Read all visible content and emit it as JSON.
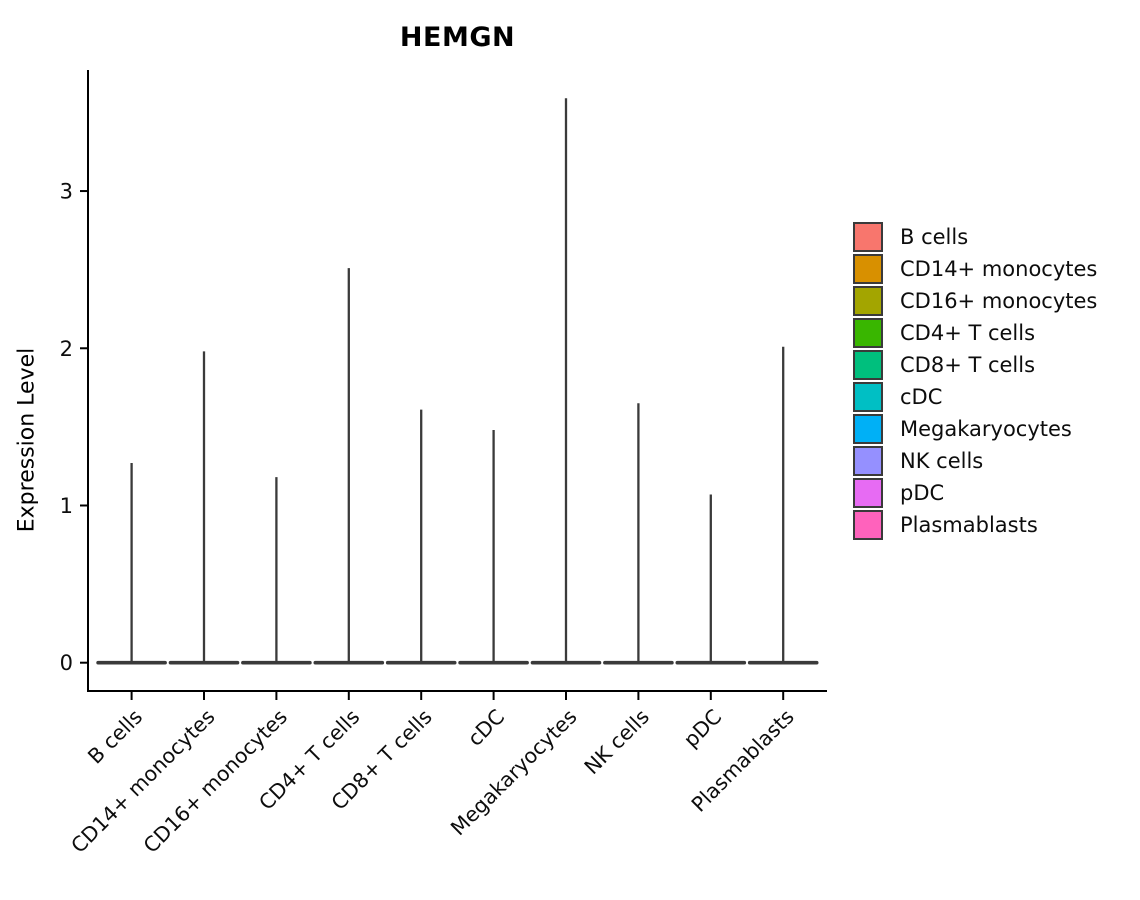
{
  "title": "HEMGN",
  "y_axis": {
    "label": "Expression Level"
  },
  "chart_data": {
    "type": "violin",
    "title": "HEMGN",
    "xlabel": "",
    "ylabel": "Expression Level",
    "categories": [
      "B cells",
      "CD14+ monocytes",
      "CD16+ monocytes",
      "CD4+ T cells",
      "CD8+ T cells",
      "cDC",
      "Megakaryocytes",
      "NK cells",
      "pDC",
      "Plasmablasts"
    ],
    "series": [
      {
        "name": "HEMGN max expression level (violin peak)",
        "values": [
          1.27,
          1.98,
          1.18,
          2.51,
          1.61,
          1.48,
          3.59,
          1.65,
          1.07,
          2.01
        ]
      }
    ],
    "baseline_value": 0,
    "violin_shape_note": "each violin is a wide flat base at 0 with a thin vertical spike up to the peak value",
    "yticks": [
      0,
      1,
      2,
      3
    ],
    "ylim": [
      -0.18,
      3.77
    ],
    "grid": false,
    "legend_position": "right",
    "outline_color": "#3A3A3A",
    "axis_color": "#000000",
    "legend": [
      {
        "label": "B cells",
        "color": "#F8766D"
      },
      {
        "label": "CD14+ monocytes",
        "color": "#D89000"
      },
      {
        "label": "CD16+ monocytes",
        "color": "#A3A500"
      },
      {
        "label": "CD4+ T cells",
        "color": "#39B600"
      },
      {
        "label": "CD8+ T cells",
        "color": "#00BF7D"
      },
      {
        "label": "cDC",
        "color": "#00BFC4"
      },
      {
        "label": "Megakaryocytes",
        "color": "#00B0F6"
      },
      {
        "label": "NK cells",
        "color": "#9590FF"
      },
      {
        "label": "pDC",
        "color": "#E76BF3"
      },
      {
        "label": "Plasmablasts",
        "color": "#FF62BC"
      }
    ]
  }
}
